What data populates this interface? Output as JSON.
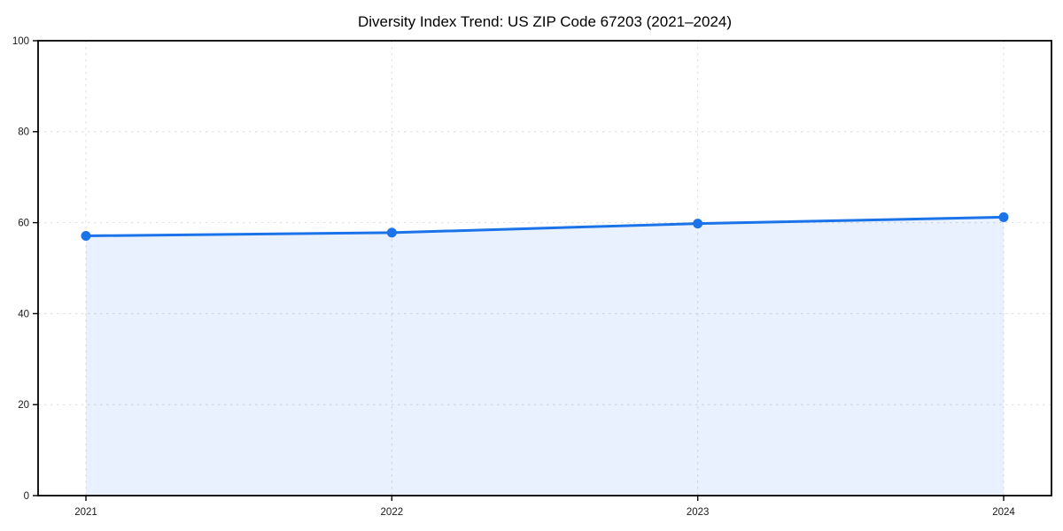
{
  "chart_data": {
    "type": "line",
    "title": "Diversity Index Trend: US ZIP Code 67203 (2021–2024)",
    "categories": [
      "2021",
      "2022",
      "2023",
      "2024"
    ],
    "series": [
      {
        "name": "Diversity Index",
        "values": [
          57.1,
          57.8,
          59.8,
          61.2
        ],
        "color": "#1a73e8",
        "marker": "circle",
        "area_fill": true,
        "area_opacity": 0.1
      }
    ],
    "xlabel": "",
    "ylabel": "",
    "ylim": [
      0,
      100
    ],
    "yticks": [
      0,
      20,
      40,
      60,
      80,
      100
    ],
    "grid": true,
    "grid_color": "#dcdcdc",
    "grid_style": "dashed",
    "axis_color": "#000000",
    "tick_label_color": "#1a1a1a",
    "title_color": "#000000",
    "legend": false,
    "background": "#ffffff"
  }
}
